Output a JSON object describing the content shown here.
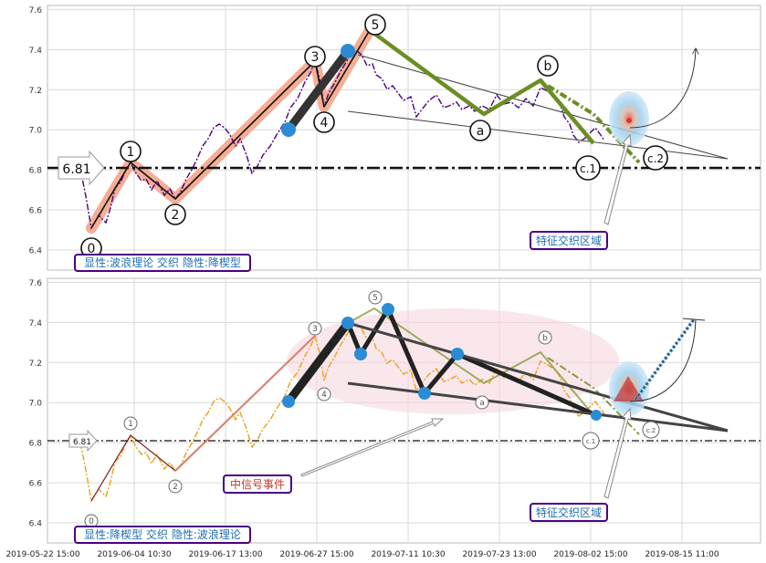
{
  "chart_data": [
    {
      "type": "line",
      "panel": "top",
      "ylim": [
        6.3,
        7.62
      ],
      "yticks": [
        6.4,
        6.6,
        6.8,
        7.0,
        7.2,
        7.4,
        7.6
      ],
      "ytick_labels": [
        "6.4",
        "6.6",
        "6.8",
        "7.0",
        "7.2",
        "7.4",
        "7.6"
      ],
      "grid": true,
      "level_value": 6.81,
      "level_label": "6.81",
      "wave_labels": [
        "0",
        "1",
        "2",
        "3",
        "4",
        "5",
        "a",
        "b",
        "c.2",
        "c.1"
      ],
      "caption": "显性:波浪理论 交织 隐性:降楔型",
      "zone_label": "特征交织区域",
      "series_color": "#4b0082"
    },
    {
      "type": "line",
      "panel": "bottom",
      "ylim": [
        6.3,
        7.62
      ],
      "yticks": [
        6.4,
        6.6,
        6.8,
        7.0,
        7.2,
        7.4,
        7.6
      ],
      "ytick_labels": [
        "6.4",
        "6.6",
        "6.8",
        "7.0",
        "7.2",
        "7.4",
        "7.6"
      ],
      "grid": true,
      "level_value": 6.81,
      "level_label": "6.81",
      "wave_labels": [
        "0",
        "1",
        "2",
        "3",
        "4",
        "5",
        "a",
        "b",
        "c.2",
        "c.1"
      ],
      "caption": "显性:降楔型 交织 隐性:波浪理论",
      "event_label": "中信号事件",
      "zone_label": "特征交织区域",
      "series_color": "#e8a317"
    }
  ],
  "x_axis": {
    "tick_labels": [
      "2019-05-22 15:00",
      "2019-06-04 10:30",
      "2019-06-17 13:00",
      "2019-06-27 15:00",
      "2019-07-11 10:30",
      "2019-07-23 13:00",
      "2019-08-02 15:00",
      "2019-08-15 11:00"
    ]
  },
  "colors": {
    "wave_fill": "#f4a58a",
    "wedge_green": "#6b8e23",
    "marker_blue": "#2b8cd6",
    "caption_border": "#4b0082",
    "caption_text": "#1f6fb5",
    "event_text": "#c0392b"
  }
}
